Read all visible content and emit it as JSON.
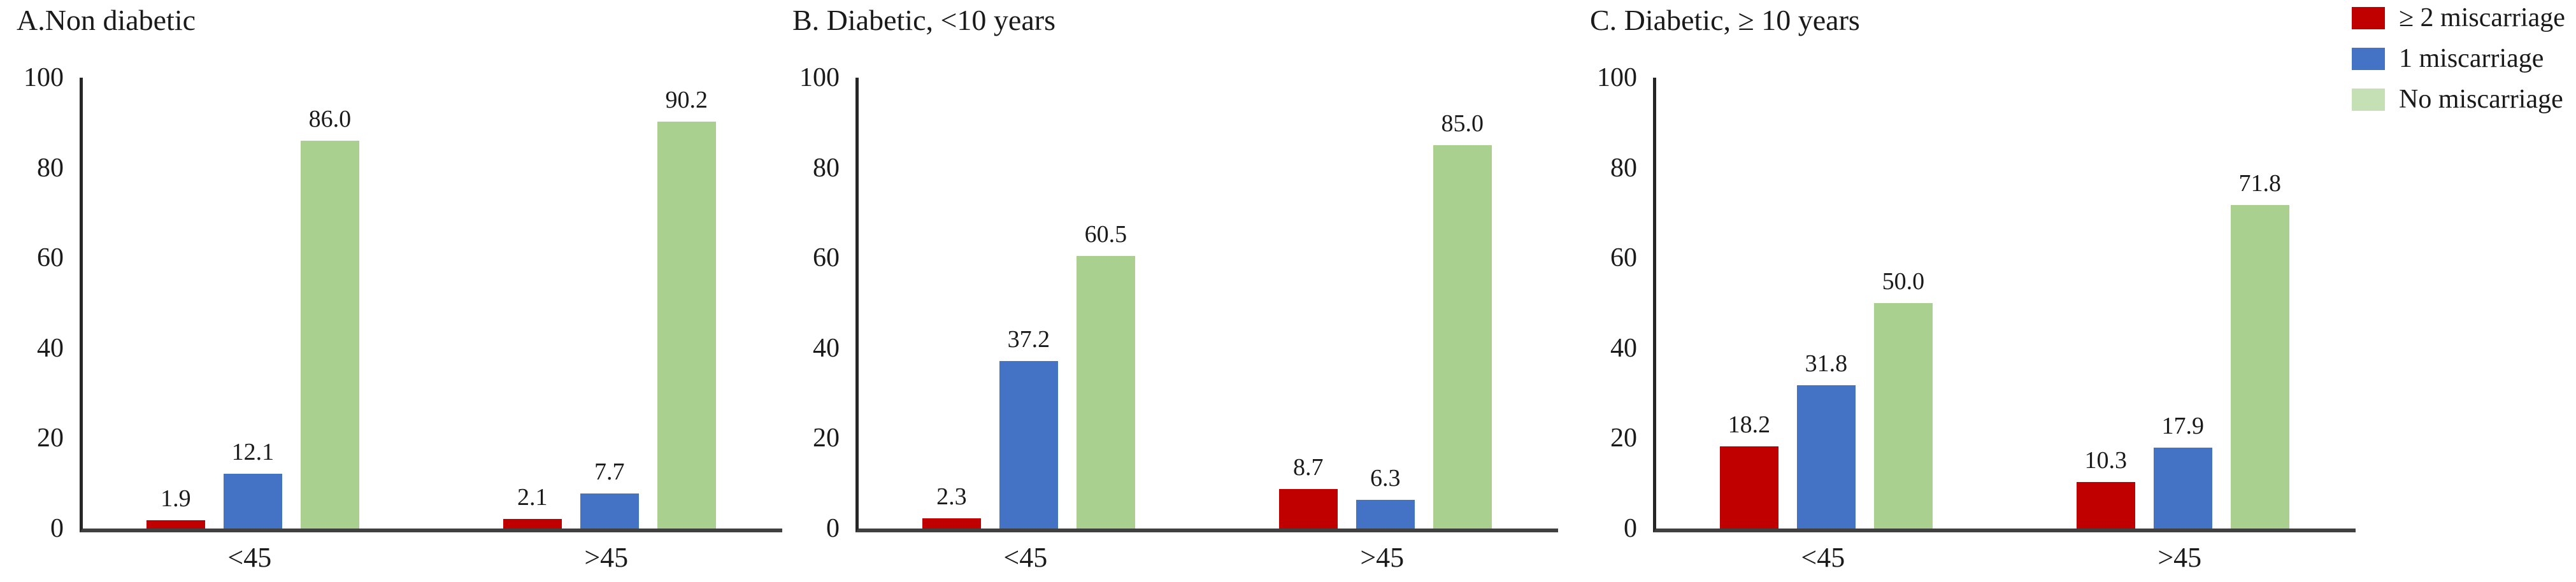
{
  "figure": {
    "background": "#ffffff",
    "text_color": "#1a1a1a",
    "axis_color": "#262626",
    "baseline_color": "#404040"
  },
  "legend": {
    "position": "top-right",
    "items": [
      {
        "label": "≥ 2 miscarriage",
        "color": "#c00000"
      },
      {
        "label": "1 miscarriage",
        "color": "#4472c4"
      },
      {
        "label": "No miscarriage",
        "color": "#c5e0b4"
      }
    ]
  },
  "chart_data": [
    {
      "panel": "A",
      "type": "bar",
      "title": "A.Non diabetic",
      "categories": [
        "<45",
        ">45"
      ],
      "series": [
        {
          "name": "≥ 2 miscarriage",
          "color": "#c00000",
          "values": [
            1.9,
            2.1
          ],
          "labels": [
            "1.9",
            "2.1"
          ]
        },
        {
          "name": "1 miscarriage",
          "color": "#4472c4",
          "values": [
            12.1,
            7.7
          ],
          "labels": [
            "12.1",
            "7.7"
          ]
        },
        {
          "name": "No miscarriage",
          "color": "#a9d08e",
          "values": [
            86.0,
            90.2
          ],
          "labels": [
            "86.0",
            "90.2"
          ]
        }
      ],
      "ylim": [
        0,
        100
      ],
      "yticks": [
        "0",
        "20",
        "40",
        "60",
        "80",
        "100"
      ],
      "grid": false
    },
    {
      "panel": "B",
      "type": "bar",
      "title": "B. Diabetic, <10 years",
      "categories": [
        "<45",
        ">45"
      ],
      "series": [
        {
          "name": "≥ 2 miscarriage",
          "color": "#c00000",
          "values": [
            2.3,
            8.7
          ],
          "labels": [
            "2.3",
            "8.7"
          ]
        },
        {
          "name": "1 miscarriage",
          "color": "#4472c4",
          "values": [
            37.2,
            6.3
          ],
          "labels": [
            "37.2",
            "6.3"
          ]
        },
        {
          "name": "No miscarriage",
          "color": "#a9d08e",
          "values": [
            60.5,
            85.0
          ],
          "labels": [
            "60.5",
            "85.0"
          ]
        }
      ],
      "ylim": [
        0,
        100
      ],
      "yticks": [
        "0",
        "20",
        "40",
        "60",
        "80",
        "100"
      ],
      "grid": false
    },
    {
      "panel": "C",
      "type": "bar",
      "title": "C. Diabetic, ≥ 10 years",
      "categories": [
        "<45",
        ">45"
      ],
      "series": [
        {
          "name": "≥ 2 miscarriage",
          "color": "#c00000",
          "values": [
            18.2,
            10.3
          ],
          "labels": [
            "18.2",
            "10.3"
          ]
        },
        {
          "name": "1 miscarriage",
          "color": "#4472c4",
          "values": [
            31.8,
            17.9
          ],
          "labels": [
            "31.8",
            "17.9"
          ]
        },
        {
          "name": "No miscarriage",
          "color": "#a9d08e",
          "values": [
            50.0,
            71.8
          ],
          "labels": [
            "50.0",
            "71.8"
          ]
        }
      ],
      "ylim": [
        0,
        100
      ],
      "yticks": [
        "0",
        "20",
        "40",
        "60",
        "80",
        "100"
      ],
      "grid": false
    }
  ]
}
